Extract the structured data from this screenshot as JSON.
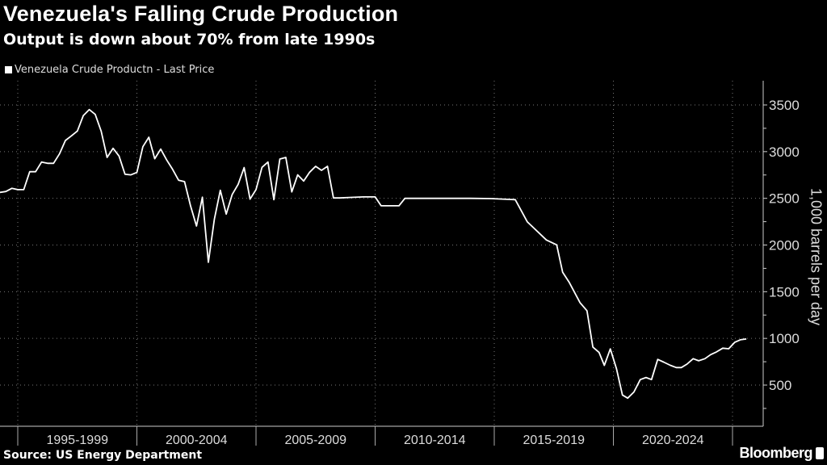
{
  "chart_data": {
    "type": "line",
    "title": "Venezuela's Falling Crude Production",
    "subtitle": "Output is down about 70% from late 1990s",
    "ylabel": "1,000 barrels per day",
    "xlabel": "",
    "ylim": [
      100,
      3750
    ],
    "xlim": [
      1994.25,
      2026.2
    ],
    "y_ticks": [
      500,
      1000,
      1500,
      2000,
      2500,
      3000,
      3500
    ],
    "x_tick_labels": [
      "1995-1999",
      "2000-2004",
      "2005-2009",
      "2010-2014",
      "2015-2019",
      "2020-2024"
    ],
    "x_tick_label_start_years": [
      1995,
      2000,
      2005,
      2010,
      2015,
      2020
    ],
    "x_separators": [
      1995,
      2000,
      2005,
      2010,
      2015,
      2020,
      2025
    ],
    "grid": true,
    "y_axis_side": "right",
    "legend_position": "top-left",
    "series": [
      {
        "name": "Venezuela Crude Productn - Last Price",
        "color": "#ffffff",
        "x": [
          1994.25,
          1994.5,
          1994.75,
          1995.0,
          1995.25,
          1995.5,
          1995.75,
          1996.0,
          1996.25,
          1996.5,
          1996.75,
          1997.0,
          1997.25,
          1997.5,
          1997.75,
          1998.0,
          1998.25,
          1998.5,
          1998.75,
          1999.0,
          1999.25,
          1999.5,
          1999.75,
          2000.0,
          2000.25,
          2000.5,
          2000.75,
          2001.0,
          2001.25,
          2001.5,
          2001.75,
          2002.0,
          2002.25,
          2002.5,
          2002.75,
          2003.0,
          2003.25,
          2003.5,
          2003.75,
          2004.0,
          2004.25,
          2004.5,
          2004.75,
          2005.0,
          2005.25,
          2005.5,
          2005.75,
          2006.0,
          2006.25,
          2006.5,
          2006.75,
          2007.0,
          2007.25,
          2007.5,
          2007.75,
          2008.0,
          2008.25,
          2008.5,
          2009.0,
          2009.5,
          2010.0,
          2010.25,
          2010.75,
          2011.0,
          2011.25,
          2012.0,
          2013.0,
          2014.0,
          2014.86,
          2015.88,
          2016.39,
          2017.19,
          2017.62,
          2017.87,
          2018.15,
          2018.6,
          2018.89,
          2019.14,
          2019.4,
          2019.62,
          2019.87,
          2020.13,
          2020.38,
          2020.6,
          2020.86,
          2021.13,
          2021.37,
          2021.6,
          2021.86,
          2022.11,
          2022.39,
          2022.64,
          2022.85,
          2023.09,
          2023.35,
          2023.58,
          2023.84,
          2024.08,
          2024.33,
          2024.59,
          2024.84,
          2025.1,
          2025.33,
          2025.58
        ],
        "y": [
          2564,
          2573,
          2607,
          2593,
          2593,
          2785,
          2785,
          2889,
          2875,
          2875,
          2975,
          3120,
          3169,
          3221,
          3385,
          3451,
          3399,
          3218,
          2938,
          3036,
          2953,
          2757,
          2751,
          2777,
          3053,
          3154,
          2924,
          3027,
          2910,
          2809,
          2694,
          2679,
          2420,
          2203,
          2512,
          1815,
          2275,
          2586,
          2331,
          2541,
          2650,
          2829,
          2491,
          2593,
          2832,
          2889,
          2485,
          2921,
          2938,
          2569,
          2751,
          2685,
          2780,
          2843,
          2800,
          2843,
          2504,
          2504,
          2510,
          2515,
          2515,
          2420,
          2420,
          2420,
          2500,
          2500,
          2500,
          2500,
          2497,
          2486,
          2247,
          2054,
          2002,
          1708,
          1599,
          1383,
          1296,
          907,
          849,
          711,
          887,
          676,
          394,
          360,
          426,
          559,
          581,
          559,
          775,
          746,
          712,
          688,
          688,
          725,
          783,
          760,
          783,
          826,
          855,
          895,
          889,
          959,
          985,
          994
        ]
      }
    ]
  },
  "source": "Source: US Energy Department",
  "logo": "Bloomberg"
}
